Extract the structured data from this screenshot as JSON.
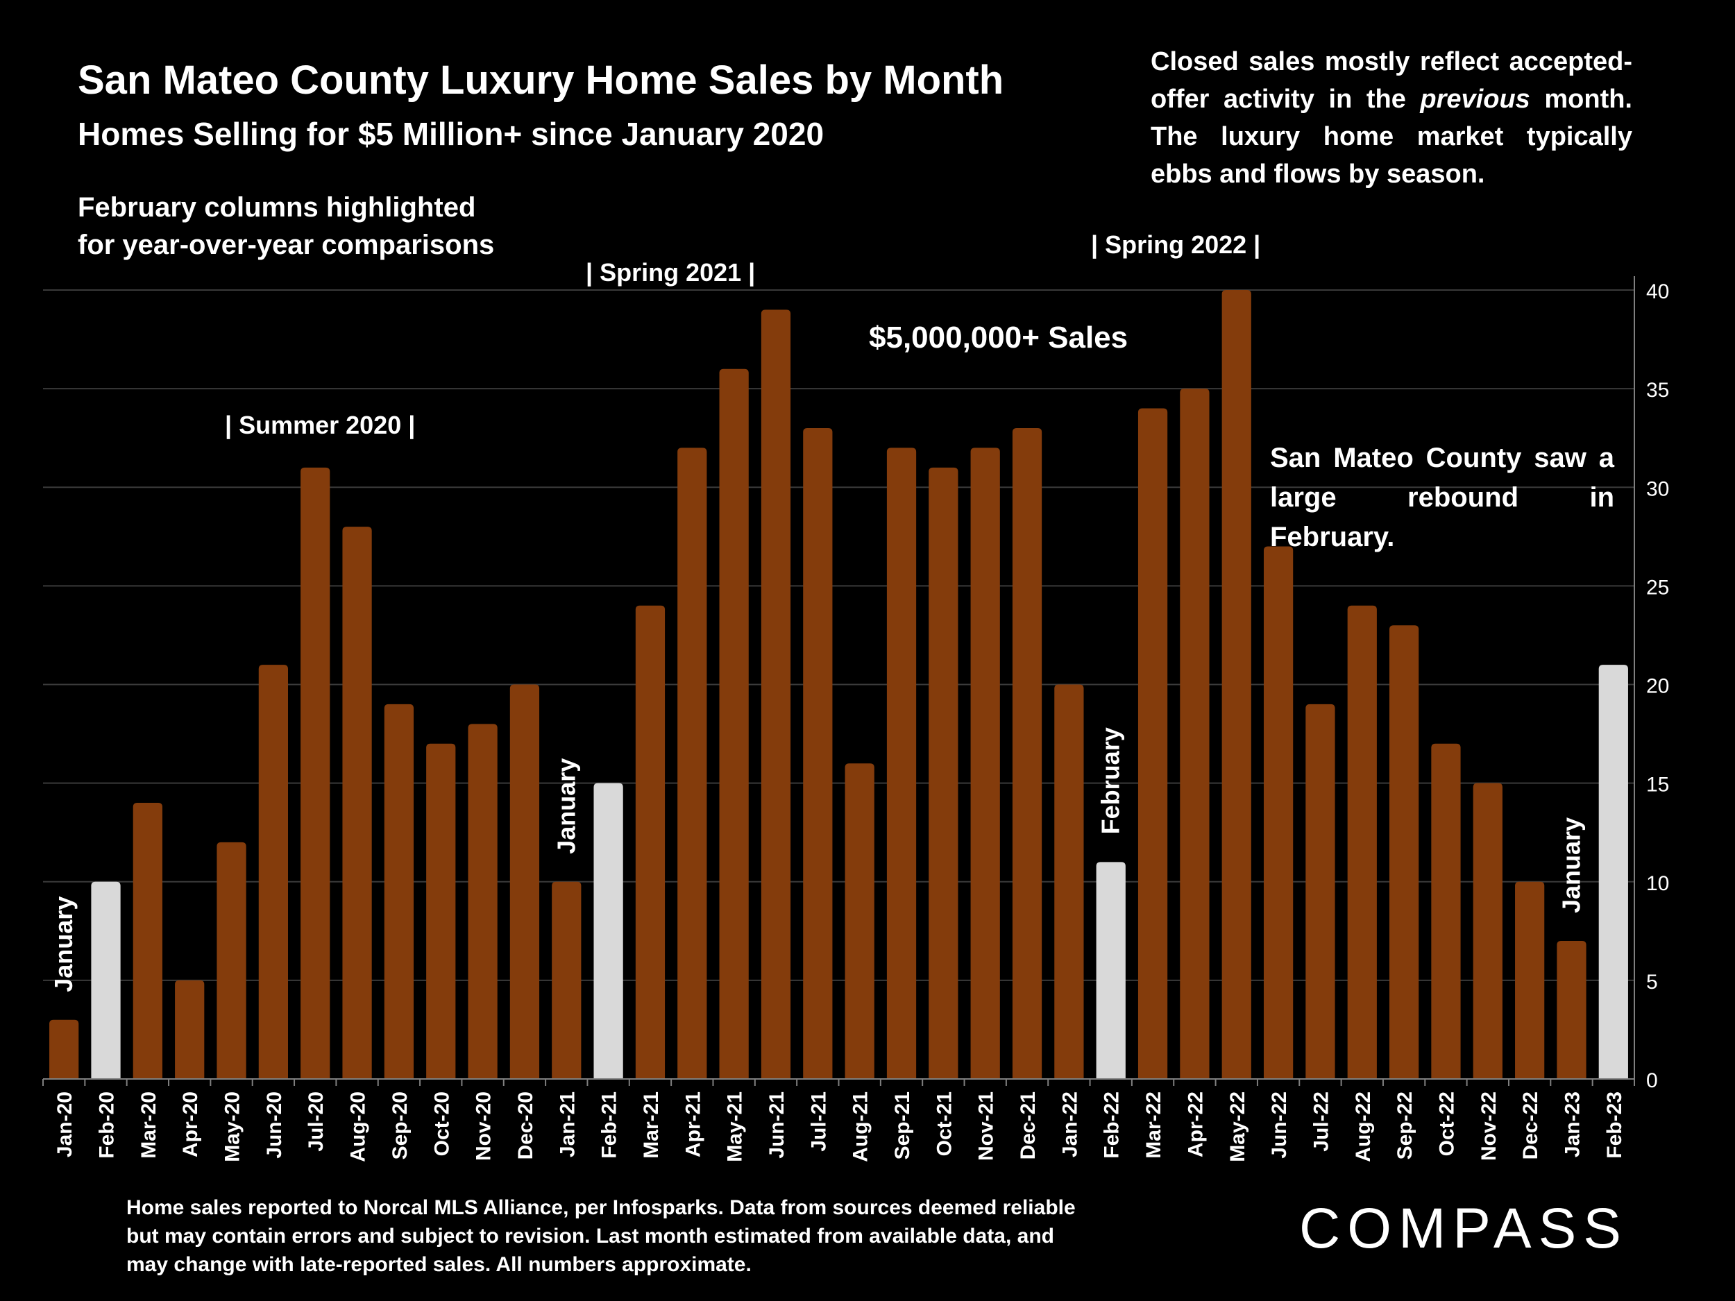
{
  "header": {
    "title": "San Mateo County Luxury Home Sales by Month",
    "subtitle": "Homes Selling for $5 Million+ since January 2020"
  },
  "notes": {
    "top_right_pre": "Closed sales mostly reflect accepted-offer activity in the ",
    "top_right_em": "previous",
    "top_right_post": " month. The luxury home market typically ebbs and flows by season.",
    "feb_line1": "February columns highlighted",
    "feb_line2": "for year-over-year comparisons",
    "rebound": "San Mateo County saw a large rebound in February.",
    "series_label": "$5,000,000+ Sales",
    "season_summer2020": "|  Summer 2020  |",
    "season_spring2021": "|  Spring 2021  |",
    "season_spring2022": "|  Spring 2022  |"
  },
  "footer": {
    "text": "Home sales reported to Norcal MLS Alliance, per Infosparks. Data from sources deemed reliable but may contain errors and subject to revision.  Last month estimated from available data, and may change with late-reported sales. All numbers approximate."
  },
  "brand": {
    "logo_text": "COMPASS"
  },
  "chart_data": {
    "type": "bar",
    "categories": [
      "Jan-20",
      "Feb-20",
      "Mar-20",
      "Apr-20",
      "May-20",
      "Jun-20",
      "Jul-20",
      "Aug-20",
      "Sep-20",
      "Oct-20",
      "Nov-20",
      "Dec-20",
      "Jan-21",
      "Feb-21",
      "Mar-21",
      "Apr-21",
      "May-21",
      "Jun-21",
      "Jul-21",
      "Aug-21",
      "Sep-21",
      "Oct-21",
      "Nov-21",
      "Dec-21",
      "Jan-22",
      "Feb-22",
      "Mar-22",
      "Apr-22",
      "May-22",
      "Jun-22",
      "Jul-22",
      "Aug-22",
      "Sep-22",
      "Oct-22",
      "Nov-22",
      "Dec-22",
      "Jan-23",
      "Feb-23"
    ],
    "values": [
      3,
      10,
      14,
      5,
      12,
      21,
      31,
      28,
      19,
      17,
      18,
      20,
      10,
      15,
      24,
      32,
      36,
      39,
      33,
      16,
      32,
      31,
      32,
      33,
      20,
      11,
      34,
      35,
      40,
      27,
      19,
      24,
      23,
      17,
      15,
      10,
      7,
      21
    ],
    "highlighted": [
      "Feb-20",
      "Feb-21",
      "Feb-22",
      "Feb-23"
    ],
    "ylim": [
      0,
      40
    ],
    "yticks": [
      0,
      5,
      10,
      15,
      20,
      25,
      30,
      35,
      40
    ],
    "y_axis_side": "right",
    "grid": true,
    "bar_labels": [
      {
        "category": "Jan-20",
        "text": "January"
      },
      {
        "category": "Jan-21",
        "text": "January"
      },
      {
        "category": "Feb-22",
        "text": "February"
      },
      {
        "category": "Jan-23",
        "text": "January"
      }
    ],
    "colors": {
      "bar": "#843C0C",
      "highlight": "#D9D9D9",
      "grid": "#3a3a3a",
      "axis": "#7f7f7f",
      "text": "#ffffff"
    }
  }
}
